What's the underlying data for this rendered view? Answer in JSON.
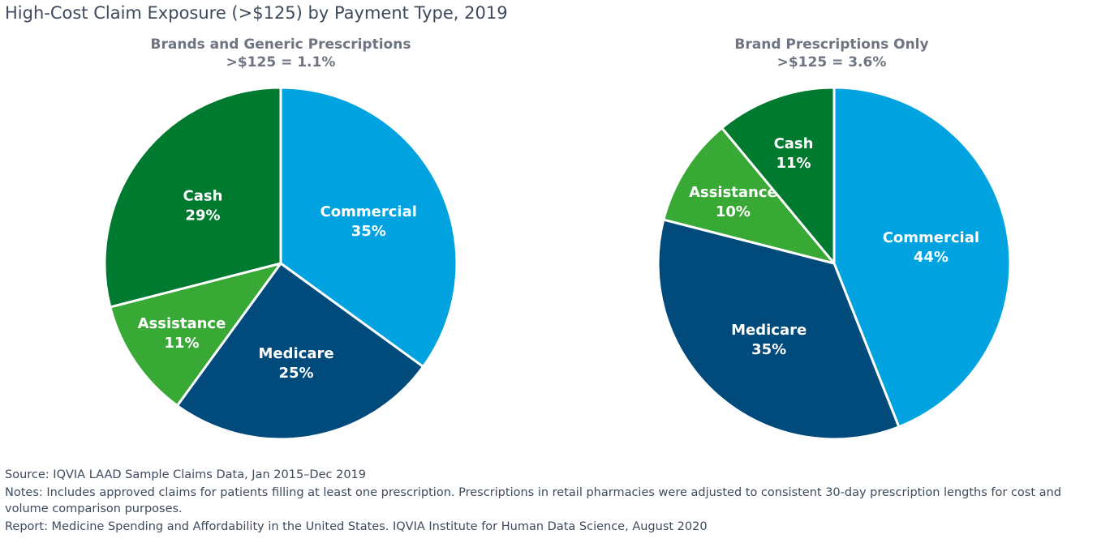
{
  "title": "High-Cost Claim Exposure (>$125) by Payment Type, 2019",
  "colors": {
    "Commercial": "#00a3e0",
    "Medicare": "#004a7c",
    "Assistance": "#38a935",
    "Cash": "#007a2f"
  },
  "chart_data": [
    {
      "type": "pie",
      "title": "Brands and Generic Prescriptions",
      "subtitle": ">$125 = 1.1%",
      "categories": [
        "Commercial",
        "Medicare",
        "Assistance",
        "Cash"
      ],
      "values": [
        35,
        25,
        11,
        29
      ],
      "labels": [
        "35%",
        "25%",
        "11%",
        "29%"
      ],
      "start": "12 o'clock",
      "direction": "clockwise"
    },
    {
      "type": "pie",
      "title": "Brand Prescriptions Only",
      "subtitle": ">$125 = 3.6%",
      "categories": [
        "Commercial",
        "Medicare",
        "Assistance",
        "Cash"
      ],
      "values": [
        44,
        35,
        10,
        11
      ],
      "labels": [
        "44%",
        "35%",
        "10%",
        "11%"
      ],
      "start": "12 o'clock",
      "direction": "clockwise"
    }
  ],
  "notes": {
    "source": "Source: IQVIA LAAD Sample Claims Data, Jan 2015–Dec 2019",
    "notes": "Notes: Includes approved claims for patients filling at least one prescription. Prescriptions in retail pharmacies were adjusted to consistent 30-day prescription lengths for cost and volume comparison purposes.",
    "report": "Report: Medicine Spending and Affordability in the United States. IQVIA Institute for Human Data Science, August 2020"
  }
}
